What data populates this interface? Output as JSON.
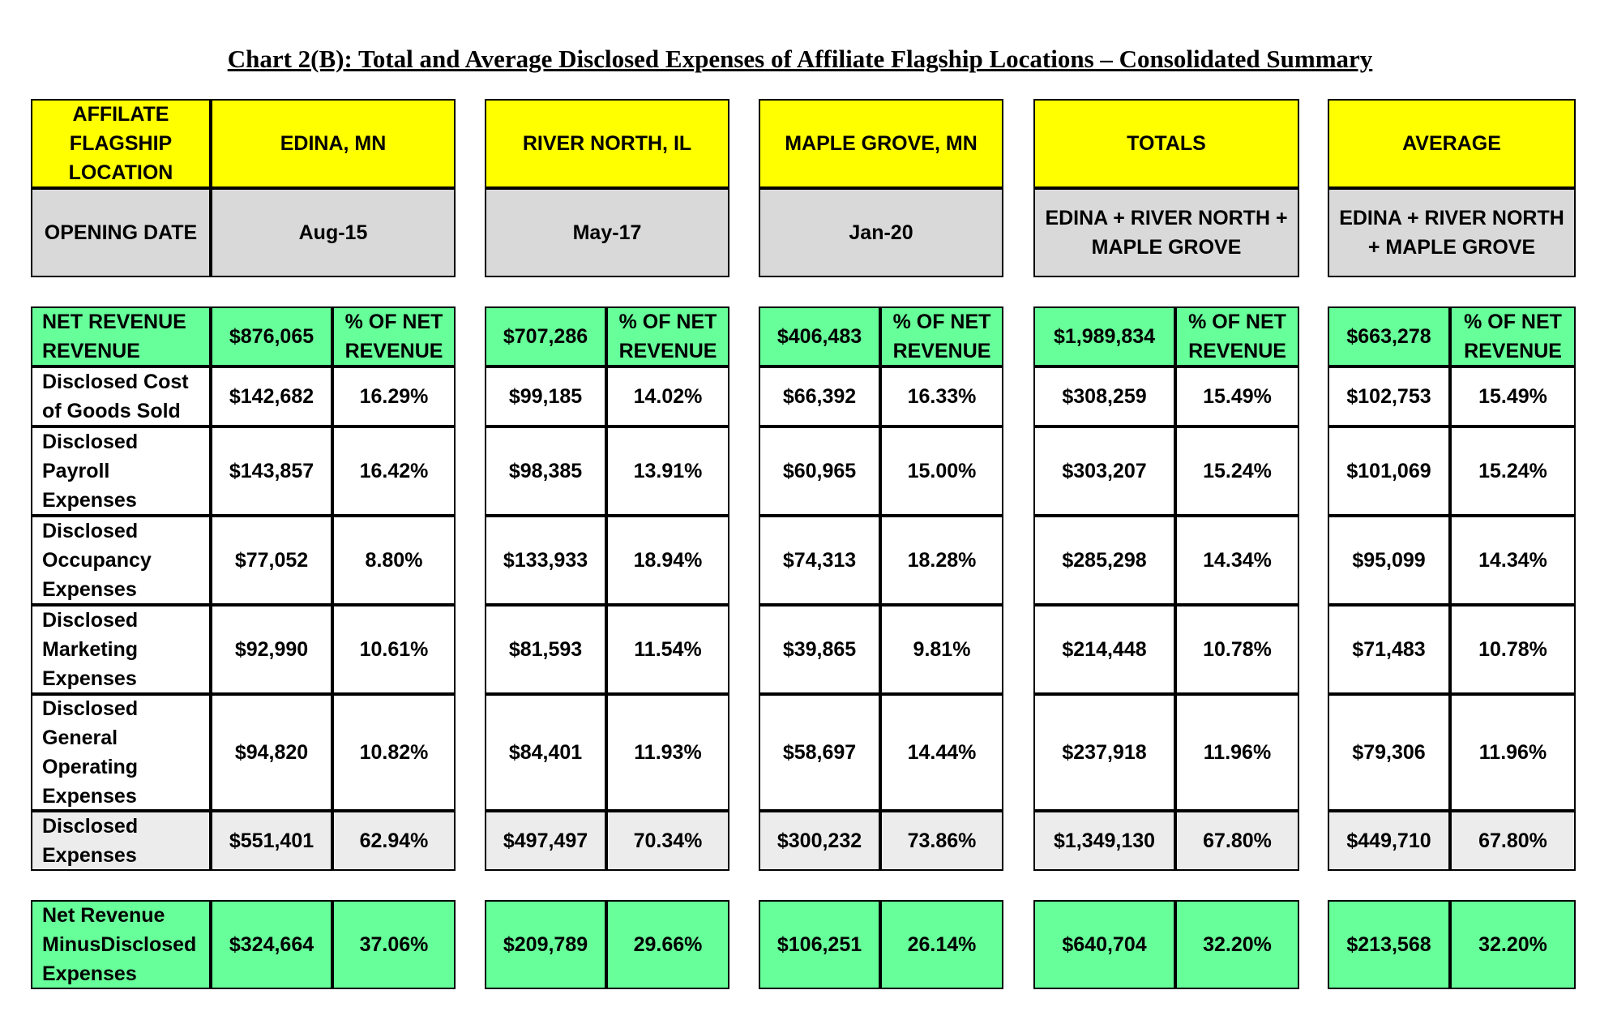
{
  "title": "Chart 2(B): Total and Average Disclosed Expenses of Affiliate Flagship Locations – Consolidated Summary",
  "row_labels": {
    "location": "AFFILATE FLAGSHIP LOCATION",
    "opening_date": "OPENING DATE",
    "net_revenue": "NET REVENUE REVENUE",
    "cogs": "Disclosed Cost of Goods Sold",
    "payroll": "Disclosed Payroll Expenses",
    "occupancy": "Disclosed Occupancy Expenses",
    "marketing": "Disclosed Marketing Expenses",
    "general": "Disclosed General Operating Expenses",
    "disclosed_expenses": "Disclosed Expenses",
    "net_minus": "Net Revenue MinusDisclosed Expenses"
  },
  "pct_header": "% OF NET REVENUE",
  "groups": [
    {
      "name": "EDINA, MN",
      "sub": "Aug-15",
      "net_revenue": "$876,065",
      "rows": [
        [
          "$142,682",
          "16.29%"
        ],
        [
          "$143,857",
          "16.42%"
        ],
        [
          "$77,052",
          "8.80%"
        ],
        [
          "$92,990",
          "10.61%"
        ],
        [
          "$94,820",
          "10.82%"
        ]
      ],
      "disclosed": [
        "$551,401",
        "62.94%"
      ],
      "net_minus": [
        "$324,664",
        "37.06%"
      ]
    },
    {
      "name": "RIVER NORTH, IL",
      "sub": "May-17",
      "net_revenue": "$707,286",
      "rows": [
        [
          "$99,185",
          "14.02%"
        ],
        [
          "$98,385",
          "13.91%"
        ],
        [
          "$133,933",
          "18.94%"
        ],
        [
          "$81,593",
          "11.54%"
        ],
        [
          "$84,401",
          "11.93%"
        ]
      ],
      "disclosed": [
        "$497,497",
        "70.34%"
      ],
      "net_minus": [
        "$209,789",
        "29.66%"
      ]
    },
    {
      "name": "MAPLE GROVE, MN",
      "sub": "Jan-20",
      "net_revenue": "$406,483",
      "rows": [
        [
          "$66,392",
          "16.33%"
        ],
        [
          "$60,965",
          "15.00%"
        ],
        [
          "$74,313",
          "18.28%"
        ],
        [
          "$39,865",
          "9.81%"
        ],
        [
          "$58,697",
          "14.44%"
        ]
      ],
      "disclosed": [
        "$300,232",
        "73.86%"
      ],
      "net_minus": [
        "$106,251",
        "26.14%"
      ]
    },
    {
      "name": "TOTALS",
      "sub": "EDINA + RIVER NORTH + MAPLE GROVE",
      "net_revenue": "$1,989,834",
      "rows": [
        [
          "$308,259",
          "15.49%"
        ],
        [
          "$303,207",
          "15.24%"
        ],
        [
          "$285,298",
          "14.34%"
        ],
        [
          "$214,448",
          "10.78%"
        ],
        [
          "$237,918",
          "11.96%"
        ]
      ],
      "disclosed": [
        "$1,349,130",
        "67.80%"
      ],
      "net_minus": [
        "$640,704",
        "32.20%"
      ]
    },
    {
      "name": "AVERAGE",
      "sub": "EDINA + RIVER NORTH + MAPLE GROVE",
      "net_revenue": "$663,278",
      "rows": [
        [
          "$102,753",
          "15.49%"
        ],
        [
          "$101,069",
          "15.24%"
        ],
        [
          "$95,099",
          "14.34%"
        ],
        [
          "$71,483",
          "10.78%"
        ],
        [
          "$79,306",
          "11.96%"
        ]
      ],
      "disclosed": [
        "$449,710",
        "67.80%"
      ],
      "net_minus": [
        "$213,568",
        "32.20%"
      ]
    }
  ]
}
